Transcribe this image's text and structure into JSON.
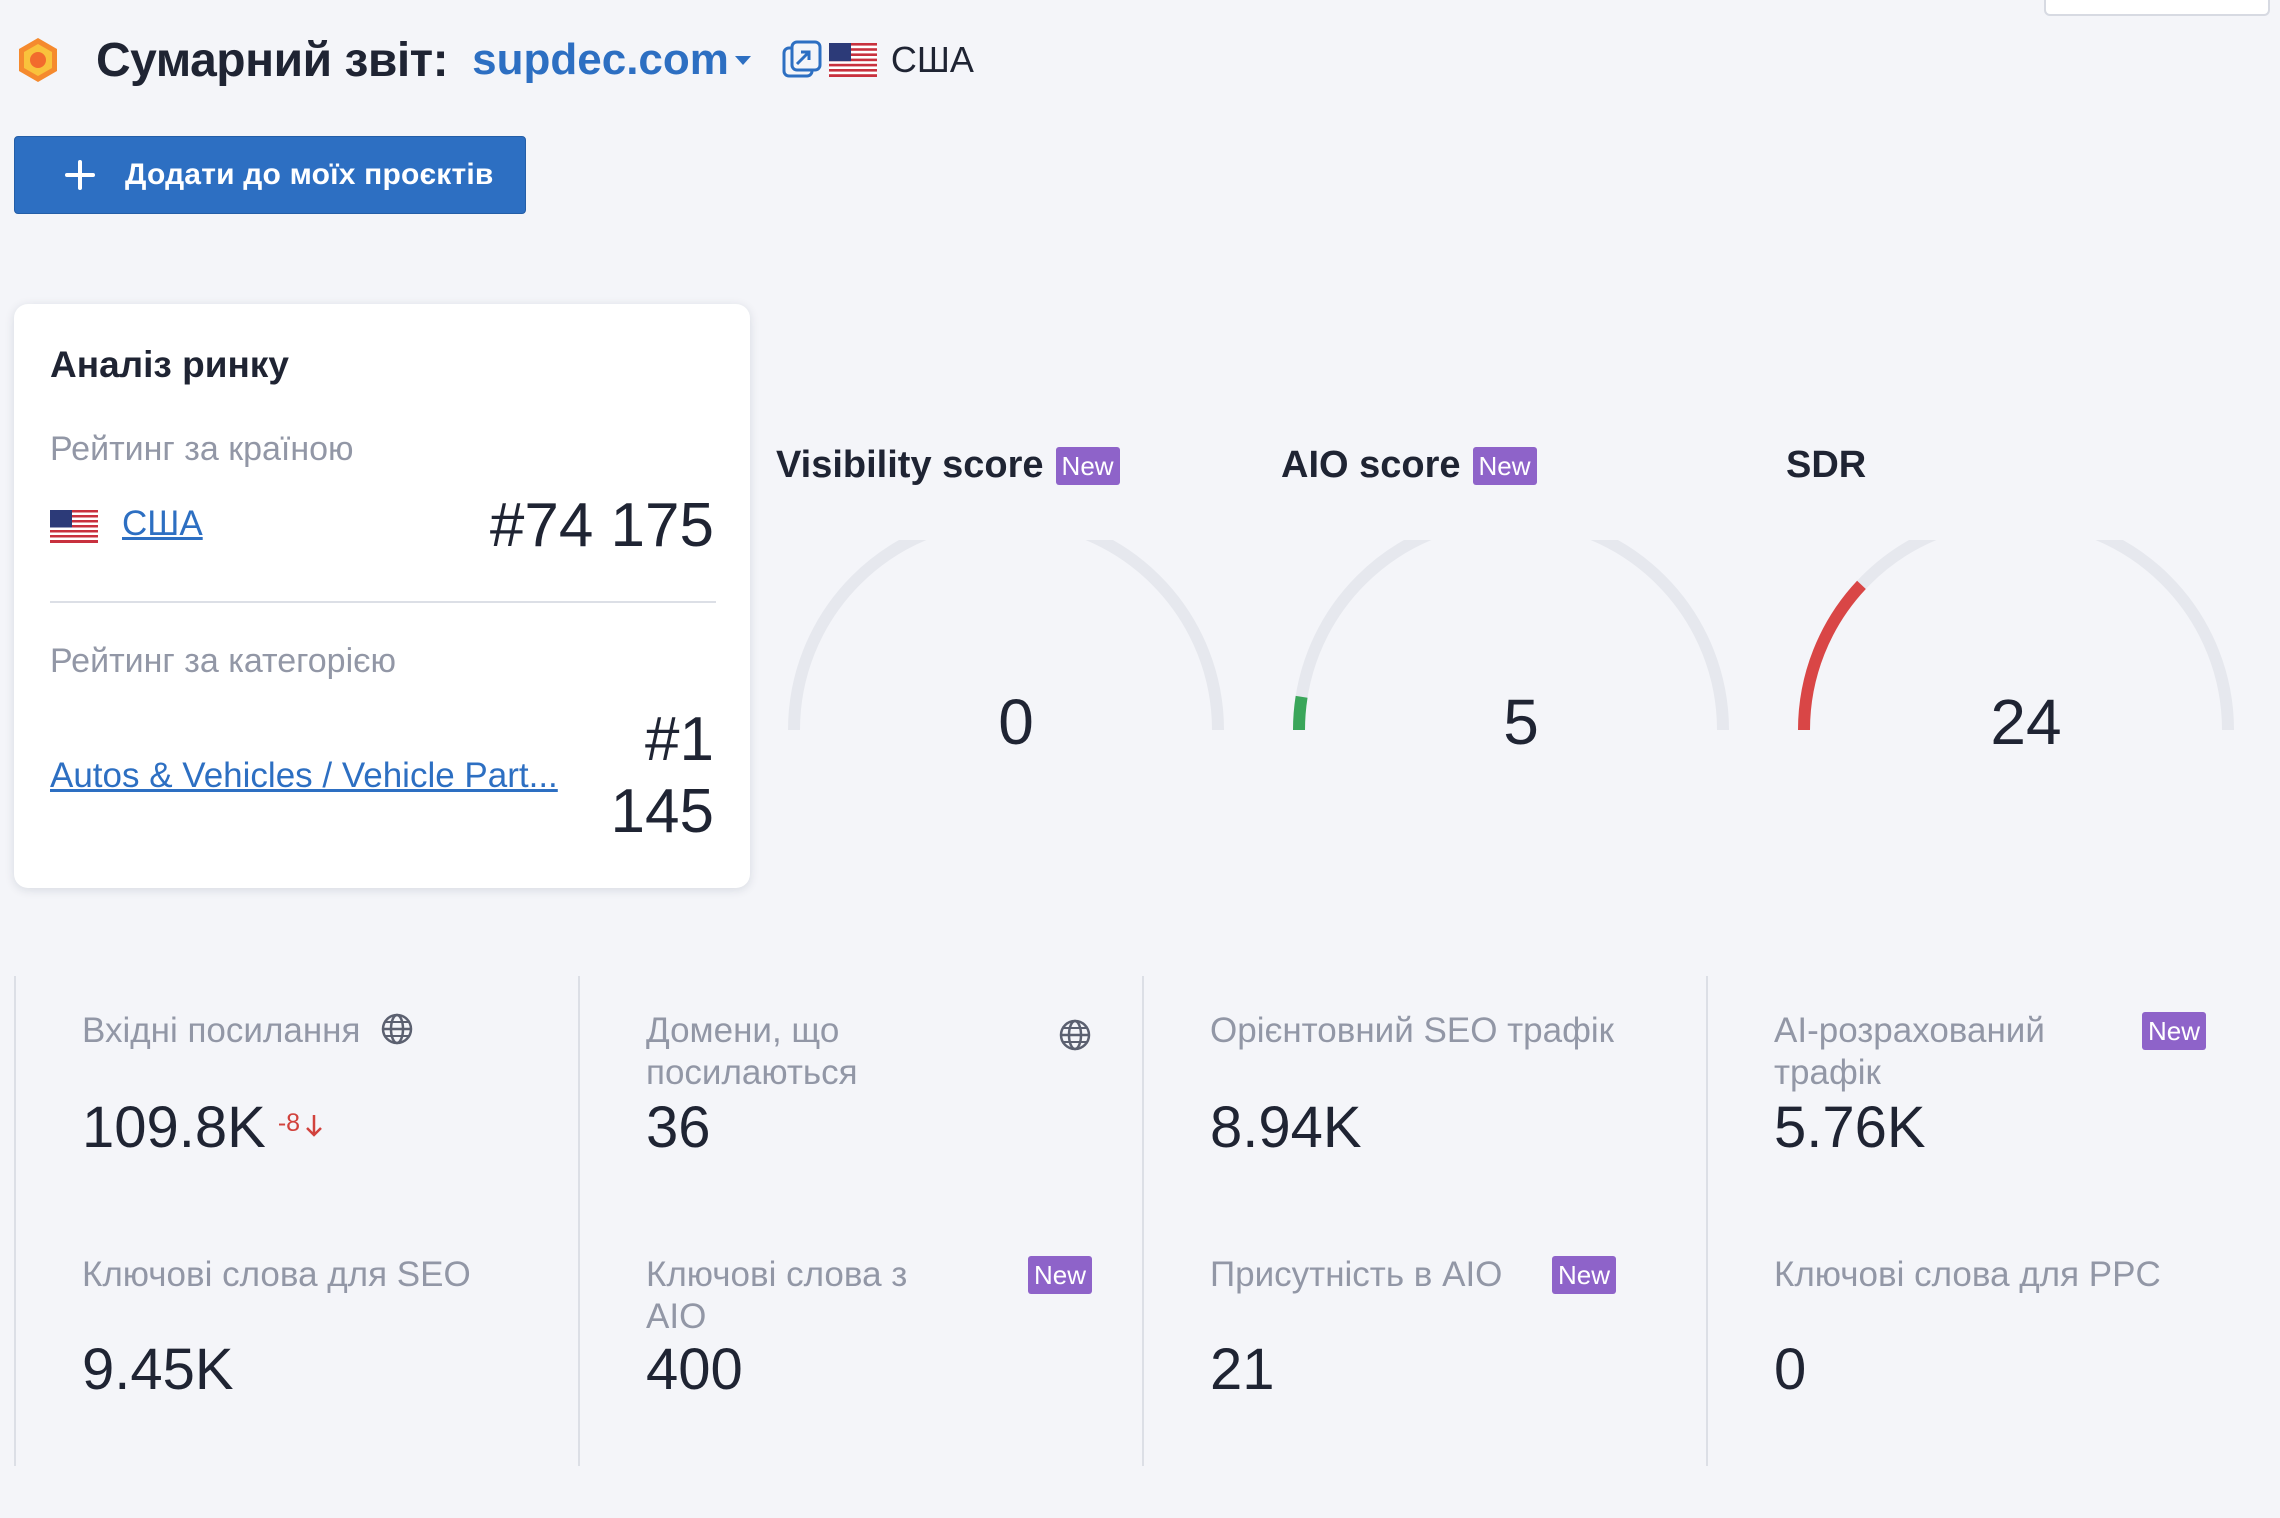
{
  "header": {
    "title": "Сумарний звіт:",
    "domain": "supdec.com",
    "country": "США"
  },
  "add_button": {
    "label": "Додати до моїх проєктів"
  },
  "market": {
    "title": "Аналіз ринку",
    "country_rank_label": "Рейтинг за країною",
    "country_link": "США",
    "country_rank": "#74 175",
    "category_rank_label": "Рейтинг за категорією",
    "category_link": "Autos & Vehicles / Vehicle Part...",
    "category_rank_line1": "#1",
    "category_rank_line2": "145"
  },
  "gauges": [
    {
      "title": "Visibility score",
      "badge": "New",
      "value": "0",
      "fraction": 0.0,
      "color": "#3aa65a"
    },
    {
      "title": "AIO score",
      "badge": "New",
      "value": "5",
      "fraction": 0.05,
      "color": "#3aa65a"
    },
    {
      "title": "SDR",
      "badge": "",
      "value": "24",
      "fraction": 0.24,
      "color": "#d94646"
    }
  ],
  "metrics": {
    "backlinks": {
      "label": "Вхідні посилання",
      "value": "109.8K",
      "delta": "-8"
    },
    "ref_domains": {
      "label_line1": "Домени, що",
      "label_line2": "посилаються",
      "value": "36"
    },
    "seo_traffic": {
      "label": "Орієнтовний SEO трафік",
      "value": "8.94K"
    },
    "ai_traffic": {
      "label_line1": "AI-розрахований",
      "label_line2": "трафік",
      "value": "5.76K",
      "badge": "New"
    },
    "seo_keywords": {
      "label": "Ключові слова для SEO",
      "value": "9.45K"
    },
    "aio_keywords": {
      "label_line1": "Ключові слова з",
      "label_line2": "AIO",
      "value": "400",
      "badge": "New"
    },
    "aio_presence": {
      "label": "Присутність в AIO",
      "value": "21",
      "badge": "New"
    },
    "ppc_keywords": {
      "label": "Ключові слова для PPC",
      "value": "0"
    }
  }
}
